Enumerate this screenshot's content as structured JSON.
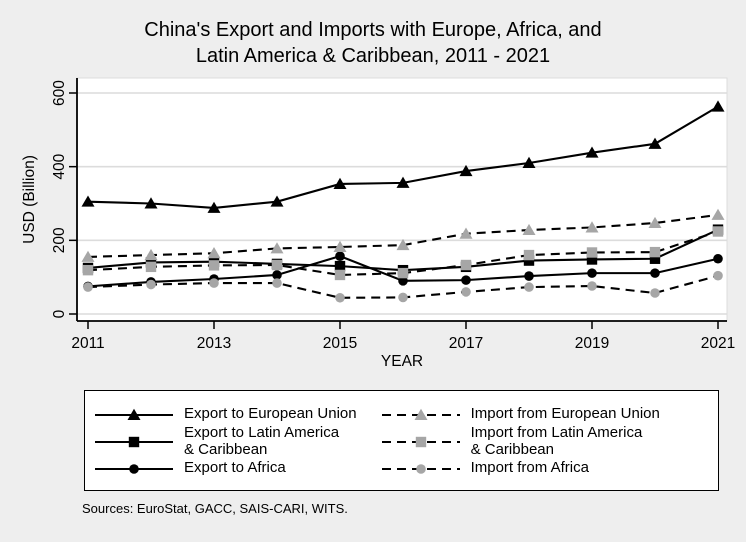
{
  "title_line1": "China's Export and Imports with Europe, Africa, and",
  "title_line2": "Latin America & Caribbean, 2011 - 2021",
  "sources_note": "Sources: EuroStat, GACC, SAIS-CARI, WITS.",
  "colors": {
    "background": "#eeeeee",
    "plot_background": "#ffffff",
    "gridline": "#dcdcdc",
    "axis": "#000000",
    "black_series": "#000000",
    "gray_marker": "#a6a6a6",
    "legend_border": "#000000"
  },
  "chart_data": {
    "type": "line",
    "x": [
      2011,
      2012,
      2013,
      2014,
      2015,
      2016,
      2017,
      2018,
      2019,
      2020,
      2021
    ],
    "xticks": [
      2011,
      2013,
      2015,
      2017,
      2019,
      2021
    ],
    "yticks": [
      0,
      200,
      400,
      600
    ],
    "ylim": [
      0,
      600
    ],
    "xlabel": "YEAR",
    "ylabel": "USD (Billion)",
    "grid": true,
    "legend_position": "bottom",
    "series": [
      {
        "name": "Export to European Union",
        "label_lines": [
          "Export to European Union"
        ],
        "values": [
          305,
          300,
          288,
          305,
          353,
          356,
          388,
          410,
          438,
          462,
          563
        ],
        "line_style": "solid",
        "line_color": "#000000",
        "marker": "triangle",
        "marker_color": "#000000"
      },
      {
        "name": "Export to Latin America & Caribbean",
        "label_lines": [
          "Export to Latin America",
          "& Caribbean"
        ],
        "values": [
          125,
          140,
          142,
          136,
          130,
          119,
          128,
          145,
          148,
          150,
          229
        ],
        "line_style": "solid",
        "line_color": "#000000",
        "marker": "square",
        "marker_color": "#000000"
      },
      {
        "name": "Export to Africa",
        "label_lines": [
          "Export to Africa"
        ],
        "values": [
          75,
          87,
          95,
          106,
          157,
          90,
          92,
          103,
          111,
          111,
          150
        ],
        "line_style": "solid",
        "line_color": "#000000",
        "marker": "circle",
        "marker_color": "#000000"
      },
      {
        "name": "Import from European Union",
        "label_lines": [
          "Import from European Union"
        ],
        "values": [
          155,
          160,
          165,
          178,
          182,
          187,
          218,
          228,
          235,
          247,
          269
        ],
        "line_style": "dashed",
        "line_color": "#000000",
        "marker": "triangle",
        "marker_color": "#a6a6a6"
      },
      {
        "name": "Import from Latin America & Caribbean",
        "label_lines": [
          "Import from Latin America",
          "& Caribbean"
        ],
        "values": [
          119,
          128,
          132,
          133,
          106,
          111,
          133,
          160,
          167,
          168,
          224
        ],
        "line_style": "dashed",
        "line_color": "#000000",
        "marker": "square",
        "marker_color": "#a6a6a6"
      },
      {
        "name": "Import from Africa",
        "label_lines": [
          "Import from Africa"
        ],
        "values": [
          73,
          80,
          84,
          84,
          44,
          45,
          60,
          73,
          76,
          57,
          104
        ],
        "line_style": "dashed",
        "line_color": "#000000",
        "marker": "circle",
        "marker_color": "#a6a6a6"
      }
    ]
  },
  "legend_order": [
    0,
    3,
    1,
    4,
    2,
    5
  ]
}
